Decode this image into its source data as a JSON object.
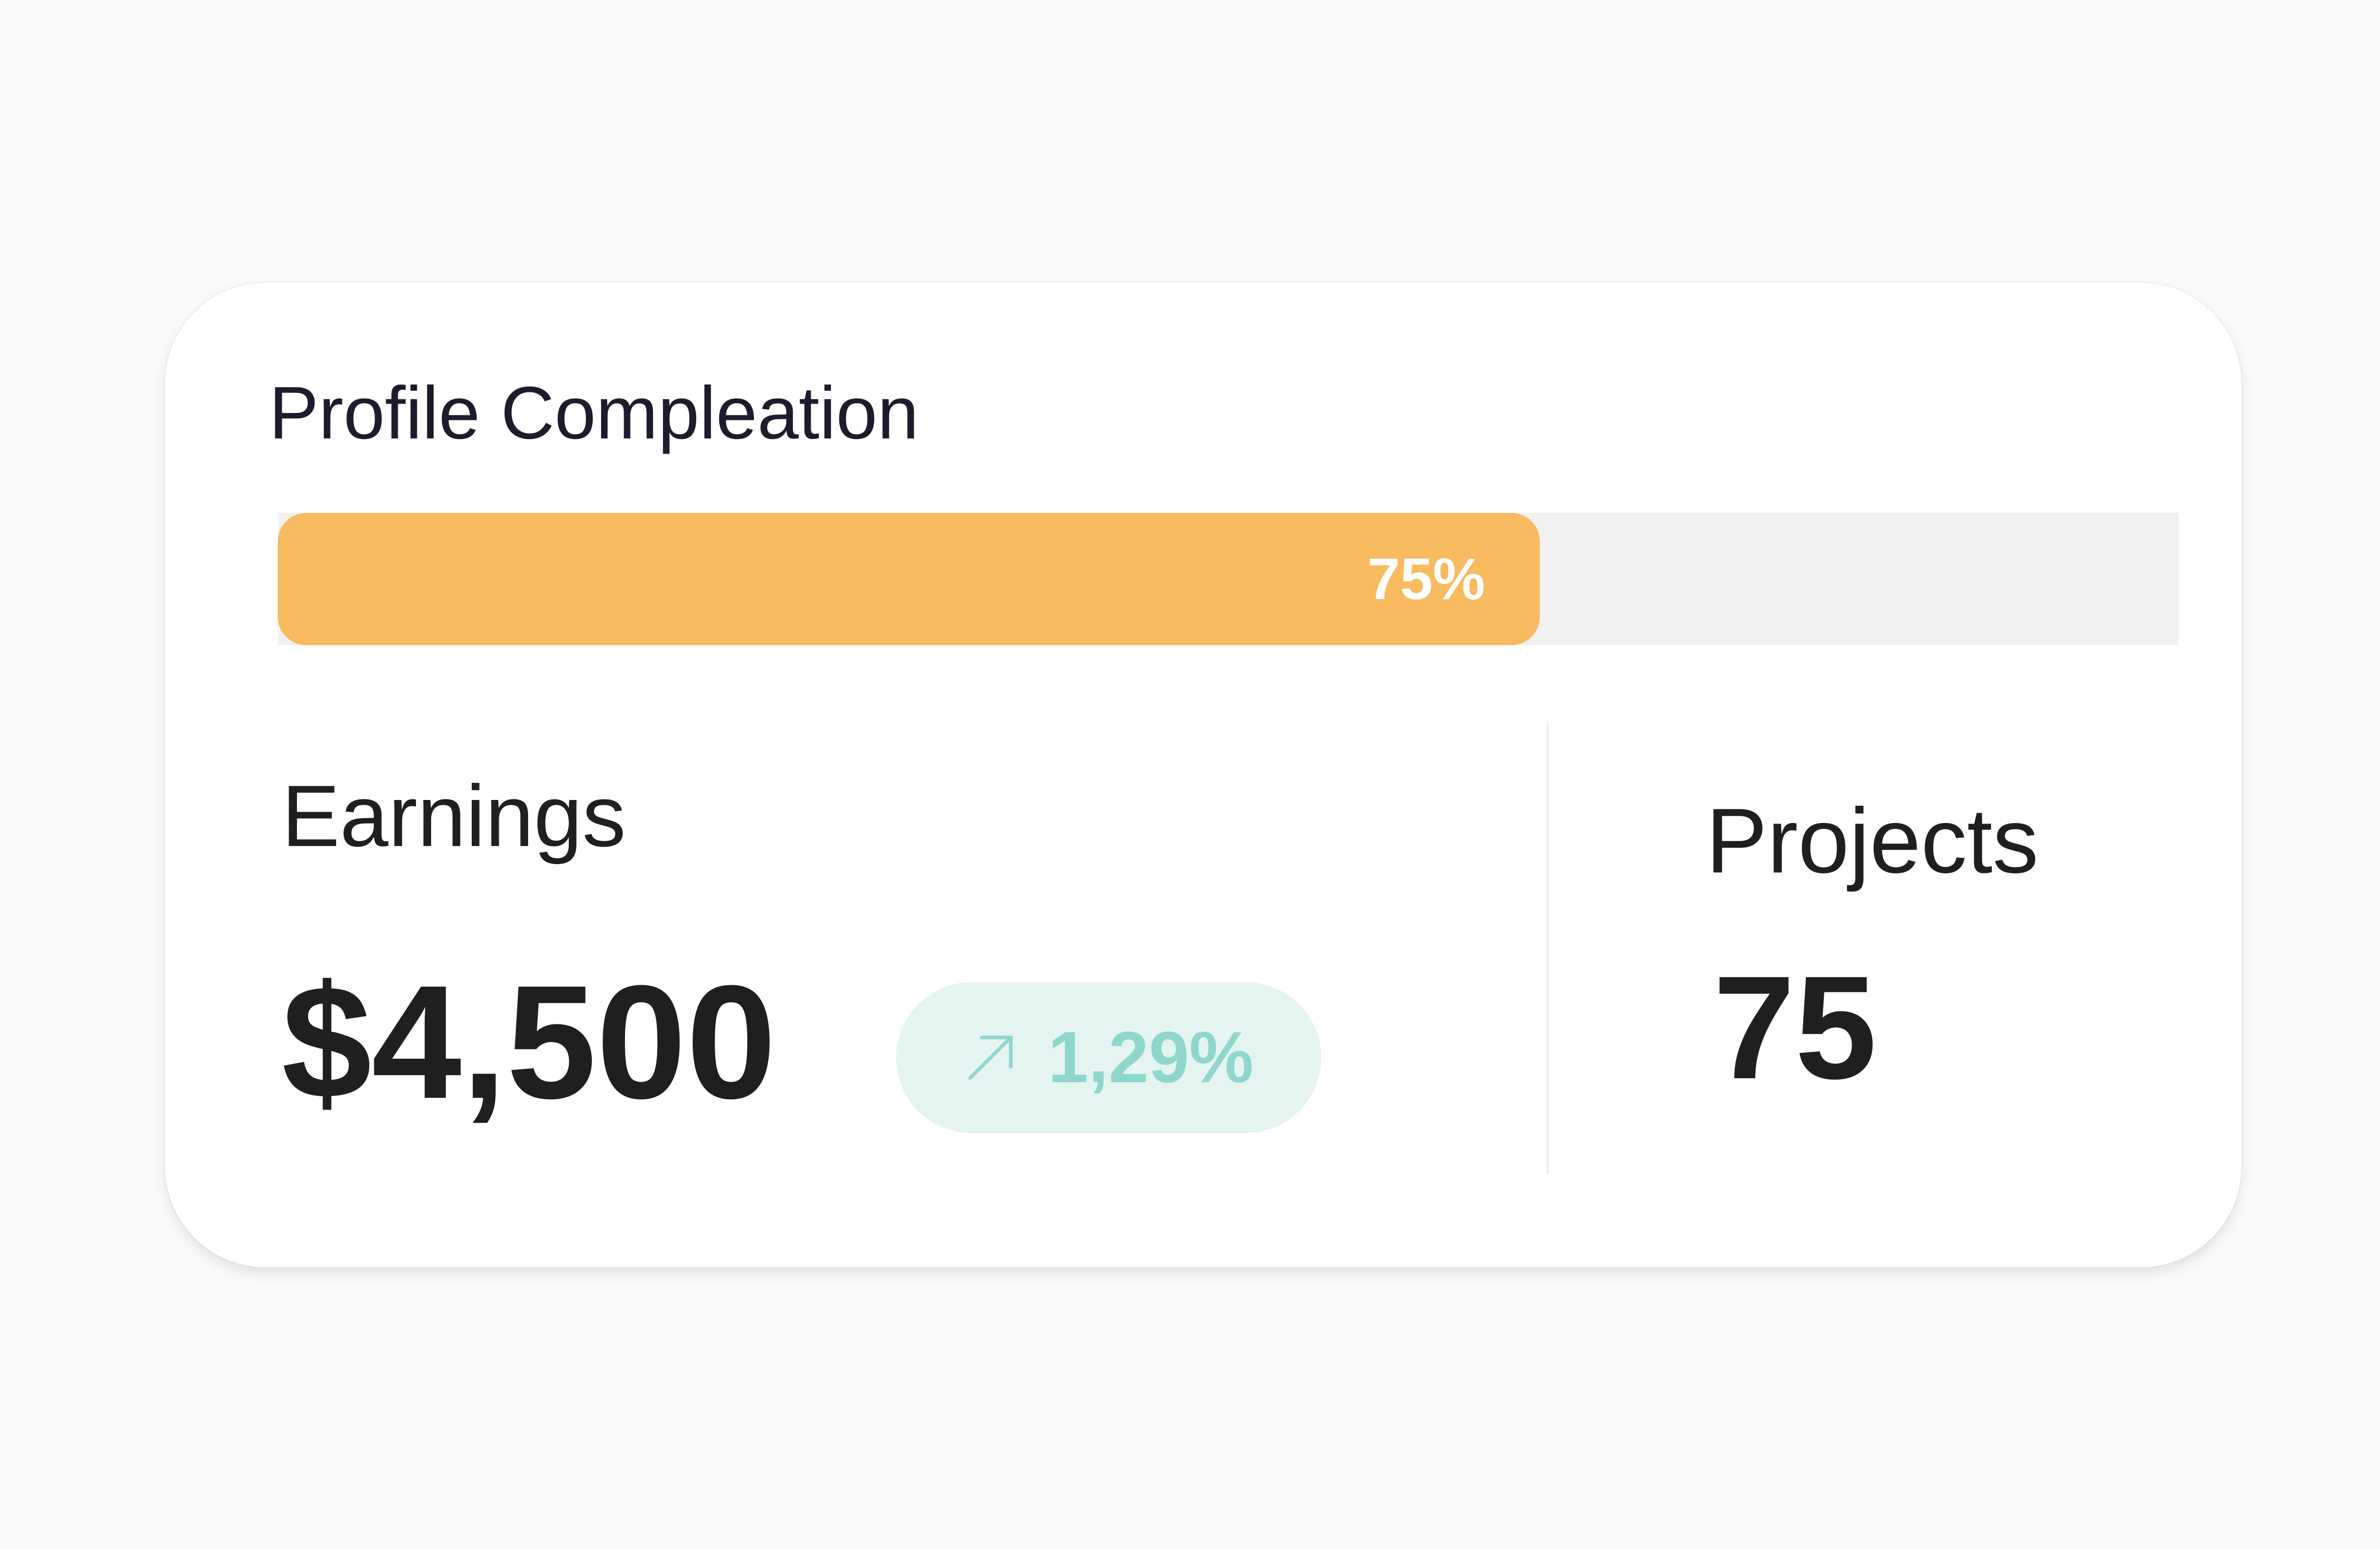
{
  "profile": {
    "title": "Profile Compleation",
    "progress_percent": 75,
    "progress_label": "75%"
  },
  "earnings": {
    "label": "Earnings",
    "value": "$4,500",
    "change": {
      "icon": "arrow-up-right-icon",
      "value": "1,29%"
    }
  },
  "projects": {
    "label": "Projects",
    "value": "75"
  },
  "colors": {
    "accent": "#f8bb5f",
    "track": "#f1f1f1",
    "positive": "#8fd7cc",
    "positive_bg": "#e4f4f1",
    "text": "#1f1f1f"
  }
}
